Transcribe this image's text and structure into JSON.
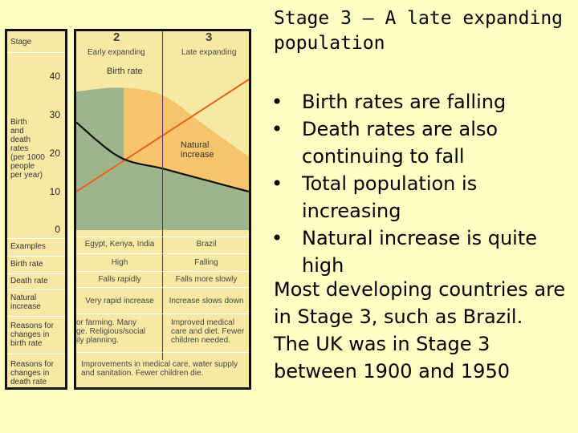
{
  "slide": {
    "title": "Stage 3 – A late expanding population",
    "bullets": [
      "Birth rates are falling",
      "Death rates are also continuing to fall",
      "Total population is increasing",
      "Natural increase is quite high"
    ],
    "paragraphs": [
      "Most developing countries are in Stage 3, such as Brazil.",
      "The UK was in Stage 3 between 1900 and 1950"
    ]
  },
  "side_panel": {
    "stage_label": "Stage",
    "yaxis_label": [
      "Birth",
      "and",
      "death",
      "rates",
      "(per 1000",
      "people",
      "per year)"
    ],
    "ticks": [
      "40",
      "30",
      "20",
      "10",
      "0"
    ],
    "rows": [
      {
        "label": [
          "Examples"
        ]
      },
      {
        "label": [
          "Birth rate"
        ]
      },
      {
        "label": [
          "Death rate"
        ]
      },
      {
        "label": [
          "Natural",
          "increase"
        ]
      },
      {
        "label": [
          "Reasons for",
          "changes in",
          "birth rate"
        ]
      },
      {
        "label": [
          "Reasons for",
          "changes in",
          "death rate"
        ]
      }
    ]
  },
  "figure": {
    "stage_numbers": [
      "2",
      "3"
    ],
    "stage_titles": [
      "Early expanding",
      "Late expanding"
    ],
    "birth_rate_label": "Birth rate",
    "natural_increase_label": [
      "Natural",
      "increase"
    ],
    "table": {
      "examples": [
        "Egypt, Kenya, India",
        "Brazil"
      ],
      "birth_rate": [
        "High",
        "Falling"
      ],
      "death_rate": [
        "Falls rapidly",
        "Falls more slowly"
      ],
      "natural_increase": [
        "Very rapid increase",
        "Increase slows down"
      ],
      "birth_reasons_left": [
        "or farming. Many",
        "ge. Religious/social",
        "ily planning."
      ],
      "birth_reasons_right": [
        "Improved medical",
        "care and diet. Fewer",
        "children needed."
      ],
      "death_reasons": [
        "Improvements in medical care, water supply",
        "and sanitation. Fewer children die."
      ]
    },
    "colors": {
      "panel_bg": "#f7e9a4",
      "birth_area": "#9fb48a",
      "natural_increase_area": "#f6c46a",
      "birth_line": "#111111",
      "death_line": "#e8621c",
      "slide_bg": "#ffffc4"
    }
  },
  "chart_data": {
    "type": "line",
    "x": [
      0,
      0.5,
      1,
      1.5,
      2
    ],
    "ylim": [
      0,
      40
    ],
    "series": [
      {
        "name": "Birth rate",
        "values": [
          36,
          37,
          35,
          27,
          19
        ]
      },
      {
        "name": "",
        "values": [
          28,
          19,
          16,
          13,
          10
        ]
      }
    ]
  }
}
